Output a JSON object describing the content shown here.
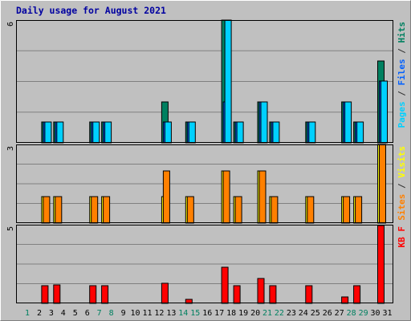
{
  "chart_data": {
    "type": "bar",
    "title": "Daily usage for August 2021",
    "days": [
      "1",
      "2",
      "3",
      "4",
      "5",
      "6",
      "7",
      "8",
      "9",
      "10",
      "11",
      "12",
      "13",
      "14",
      "15",
      "16",
      "17",
      "18",
      "19",
      "20",
      "21",
      "22",
      "23",
      "24",
      "25",
      "26",
      "27",
      "28",
      "29",
      "30",
      "31"
    ],
    "weekend_days": [
      "1",
      "7",
      "8",
      "14",
      "15",
      "21",
      "22",
      "28",
      "29"
    ],
    "panels": [
      {
        "id": "top",
        "scale_label": "6",
        "ymax": 6,
        "legend": [
          {
            "text": "Pages",
            "color": "#00d0ff"
          },
          {
            "text": " / ",
            "color": "#303030"
          },
          {
            "text": "Files",
            "color": "#0060ff"
          },
          {
            "text": " / ",
            "color": "#303030"
          },
          {
            "text": "Hits",
            "color": "#008060"
          }
        ],
        "series": [
          {
            "name": "Hits",
            "color": "#008060",
            "values": [
              0,
              0,
              1,
              1,
              0,
              0,
              1,
              1,
              0,
              0,
              0,
              0,
              2,
              0,
              1,
              0,
              0,
              6,
              1,
              0,
              2,
              1,
              0,
              0,
              1,
              0,
              0,
              2,
              1,
              0,
              4
            ]
          },
          {
            "name": "Files",
            "color": "#0060ff",
            "values": [
              0,
              0,
              1,
              1,
              0,
              0,
              1,
              1,
              0,
              0,
              0,
              0,
              1,
              0,
              1,
              0,
              0,
              2,
              1,
              0,
              2,
              1,
              0,
              0,
              1,
              0,
              0,
              2,
              1,
              0,
              3
            ]
          },
          {
            "name": "Pages",
            "color": "#00d0ff",
            "values": [
              0,
              0,
              1,
              1,
              0,
              0,
              1,
              1,
              0,
              0,
              0,
              0,
              1,
              0,
              1,
              0,
              0,
              6,
              1,
              0,
              2,
              1,
              0,
              0,
              1,
              0,
              0,
              2,
              1,
              0,
              3
            ]
          }
        ]
      },
      {
        "id": "middle",
        "scale_label": "3",
        "ymax": 3,
        "legend": [
          {
            "text": "Sites",
            "color": "#ff8000"
          },
          {
            "text": " / ",
            "color": "#303030"
          },
          {
            "text": "Visits",
            "color": "#ffff00"
          }
        ],
        "series": [
          {
            "name": "Visits",
            "color": "#ffff00",
            "values": [
              0,
              0,
              1,
              1,
              0,
              0,
              1,
              1,
              0,
              0,
              0,
              0,
              1,
              0,
              1,
              0,
              0,
              2,
              1,
              0,
              2,
              1,
              0,
              0,
              1,
              0,
              0,
              1,
              1,
              0,
              3
            ]
          },
          {
            "name": "Sites",
            "color": "#ff8000",
            "values": [
              0,
              0,
              1,
              1,
              0,
              0,
              1,
              1,
              0,
              0,
              0,
              0,
              2,
              0,
              1,
              0,
              0,
              2,
              1,
              0,
              2,
              1,
              0,
              0,
              1,
              0,
              0,
              1,
              1,
              0,
              3
            ]
          }
        ]
      },
      {
        "id": "bottom",
        "scale_label": "5",
        "ymax": 5,
        "legend": [
          {
            "text": "KB F",
            "color": "#ff0000"
          }
        ],
        "series": [
          {
            "name": "KB F",
            "color": "#ff0000",
            "values": [
              0,
              0,
              1.1,
              1.15,
              0,
              0,
              1.1,
              1.1,
              0,
              0,
              0,
              0,
              1.3,
              0,
              0.25,
              0,
              0,
              2.3,
              1.1,
              0,
              1.6,
              1.1,
              0,
              0,
              1.1,
              0,
              0,
              0.4,
              1.1,
              0,
              4.95
            ]
          }
        ]
      }
    ]
  }
}
